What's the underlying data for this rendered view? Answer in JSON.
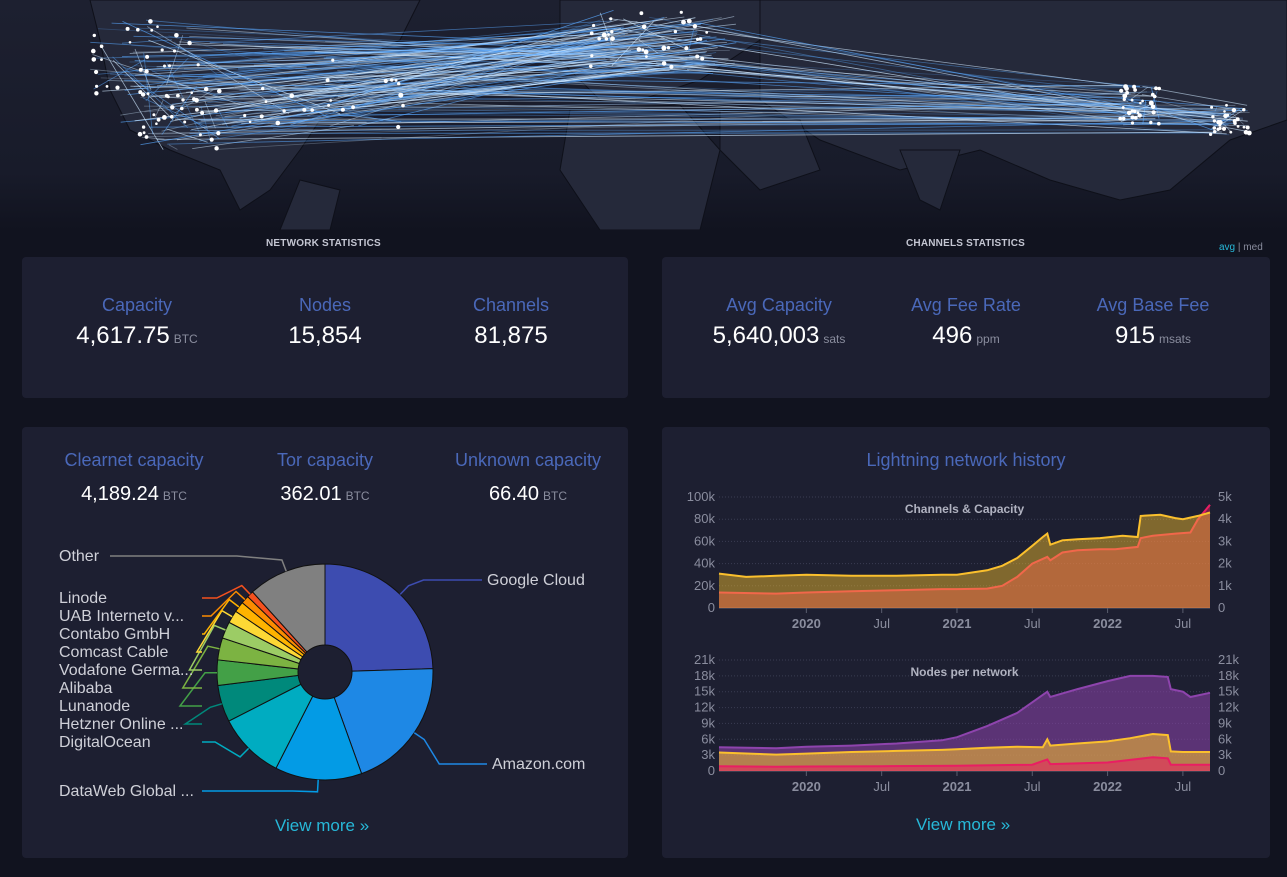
{
  "sections": {
    "network_title": "NETWORK STATISTICS",
    "channels_title": "CHANNELS STATISTICS",
    "toggle_avg": "avg",
    "toggle_sep": "|",
    "toggle_med": "med"
  },
  "network_stats": {
    "capacity_label": "Capacity",
    "capacity_value": "4,617.75",
    "capacity_unit": "BTC",
    "nodes_label": "Nodes",
    "nodes_value": "15,854",
    "channels_label": "Channels",
    "channels_value": "81,875"
  },
  "channel_stats": {
    "avg_capacity_label": "Avg Capacity",
    "avg_capacity_value": "5,640,003",
    "avg_capacity_unit": "sats",
    "avg_fee_rate_label": "Avg Fee Rate",
    "avg_fee_rate_value": "496",
    "avg_fee_rate_unit": "ppm",
    "avg_base_fee_label": "Avg Base Fee",
    "avg_base_fee_value": "915",
    "avg_base_fee_unit": "msats"
  },
  "capacity_split": {
    "clearnet_label": "Clearnet capacity",
    "clearnet_value": "4,189.24",
    "clearnet_unit": "BTC",
    "tor_label": "Tor capacity",
    "tor_value": "362.01",
    "tor_unit": "BTC",
    "unknown_label": "Unknown capacity",
    "unknown_value": "66.40",
    "unknown_unit": "BTC"
  },
  "view_more_left": "View more »",
  "view_more_right": "View more »",
  "history_title": "Lightning network history",
  "chart_data": [
    {
      "type": "pie",
      "labels": [
        "Google Cloud",
        "Amazon.com",
        "DataWeb Global ...",
        "DigitalOcean",
        "Hetzner Online ...",
        "Lunanode",
        "Alibaba",
        "Vodafone Germa...",
        "Comcast Cable",
        "Contabo GmbH",
        "UAB Interneto v...",
        "Linode",
        "Other"
      ],
      "values": [
        24.5,
        20.0,
        13.0,
        10.0,
        5.5,
        3.8,
        3.3,
        2.5,
        1.9,
        1.6,
        1.2,
        1.0,
        11.7
      ],
      "colors": [
        "#3d4cb0",
        "#1e88e5",
        "#039be5",
        "#00acc1",
        "#00897b",
        "#43a047",
        "#7cb342",
        "#9ccc65",
        "#fdd835",
        "#ffb300",
        "#fb8c00",
        "#f4511e",
        "#808080"
      ],
      "hole": true
    },
    {
      "type": "area",
      "title": "Channels & Capacity",
      "x_ticks": [
        "2020",
        "Jul",
        "2021",
        "Jul",
        "2022",
        "Jul"
      ],
      "y_left_ticks": [
        "0",
        "20k",
        "40k",
        "60k",
        "80k",
        "100k"
      ],
      "y_right_ticks": [
        "0",
        "1k",
        "2k",
        "3k",
        "4k",
        "5k"
      ],
      "y_left_range": [
        0,
        100000
      ],
      "y_right_range": [
        0,
        5000
      ],
      "x_range": [
        2019.42,
        2022.68
      ],
      "series": [
        {
          "color": "#e91e63",
          "axis": "left",
          "x": [
            2019.42,
            2019.8,
            2020.0,
            2020.3,
            2020.6,
            2020.9,
            2021.0,
            2021.2,
            2021.3,
            2021.4,
            2021.5,
            2021.6,
            2021.62,
            2021.7,
            2021.8,
            2021.95,
            2022.05,
            2022.2,
            2022.22,
            2022.3,
            2022.45,
            2022.55,
            2022.6,
            2022.68
          ],
          "y": [
            14000,
            13000,
            14000,
            15000,
            16000,
            17000,
            17000,
            17500,
            20000,
            28000,
            40000,
            46000,
            43000,
            50000,
            52000,
            53000,
            53000,
            55000,
            63000,
            65000,
            67000,
            68000,
            80000,
            93000
          ]
        },
        {
          "color": "#fbc02d",
          "axis": "right",
          "x": [
            2019.42,
            2019.6,
            2019.8,
            2020.0,
            2020.3,
            2020.6,
            2020.9,
            2021.0,
            2021.2,
            2021.3,
            2021.4,
            2021.5,
            2021.57,
            2021.6,
            2021.62,
            2021.7,
            2021.8,
            2021.95,
            2022.1,
            2022.2,
            2022.22,
            2022.35,
            2022.45,
            2022.5,
            2022.6,
            2022.68
          ],
          "y": [
            1550,
            1400,
            1450,
            1500,
            1450,
            1450,
            1500,
            1500,
            1700,
            1900,
            2250,
            2800,
            3200,
            3350,
            2850,
            3050,
            3100,
            3150,
            3250,
            3200,
            4150,
            4200,
            4050,
            4000,
            4150,
            4300
          ]
        }
      ]
    },
    {
      "type": "area",
      "title": "Nodes per network",
      "x_ticks": [
        "2020",
        "Jul",
        "2021",
        "Jul",
        "2022",
        "Jul"
      ],
      "y_left_ticks": [
        "0",
        "3k",
        "6k",
        "9k",
        "12k",
        "15k",
        "18k",
        "21k"
      ],
      "y_right_ticks": [
        "0",
        "3k",
        "6k",
        "9k",
        "12k",
        "15k",
        "18k",
        "21k"
      ],
      "y_range": [
        0,
        21000
      ],
      "x_range": [
        2019.42,
        2022.68
      ],
      "series": [
        {
          "color": "#8e44ad",
          "x": [
            2019.42,
            2019.8,
            2020.0,
            2020.3,
            2020.6,
            2020.9,
            2021.0,
            2021.2,
            2021.4,
            2021.6,
            2021.62,
            2021.8,
            2022.0,
            2022.15,
            2022.3,
            2022.4,
            2022.42,
            2022.5,
            2022.55,
            2022.68
          ],
          "y": [
            4500,
            4300,
            4600,
            4800,
            5200,
            5800,
            6400,
            8500,
            11000,
            15000,
            14000,
            15500,
            17000,
            18000,
            18000,
            17800,
            15500,
            15000,
            14000,
            14800
          ]
        },
        {
          "color": "#fbc02d",
          "x": [
            2019.42,
            2019.8,
            2020.0,
            2020.3,
            2020.6,
            2020.9,
            2021.0,
            2021.2,
            2021.4,
            2021.57,
            2021.6,
            2021.62,
            2021.8,
            2022.0,
            2022.15,
            2022.3,
            2022.4,
            2022.42,
            2022.5,
            2022.68
          ],
          "y": [
            3500,
            3100,
            3300,
            3600,
            3800,
            4000,
            4100,
            4400,
            4600,
            4500,
            6000,
            4800,
            5200,
            5600,
            6200,
            7000,
            6800,
            3700,
            3600,
            3600
          ]
        },
        {
          "color": "#e91e63",
          "x": [
            2019.42,
            2019.8,
            2020.0,
            2020.5,
            2021.0,
            2021.5,
            2021.6,
            2021.62,
            2022.0,
            2022.3,
            2022.4,
            2022.42,
            2022.68
          ],
          "y": [
            900,
            800,
            850,
            900,
            1000,
            1200,
            2200,
            1300,
            1600,
            2600,
            2400,
            1200,
            1200
          ]
        }
      ]
    }
  ]
}
